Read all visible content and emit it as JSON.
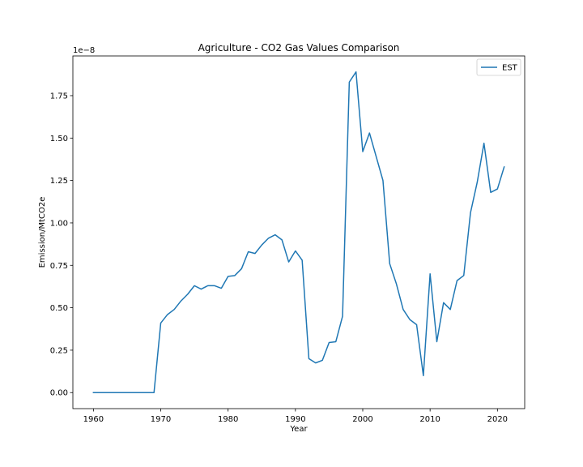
{
  "chart_data": {
    "type": "line",
    "title": "Agriculture - CO2 Gas Values Comparison",
    "xlabel": "Year",
    "ylabel": "Emission/MtCO2e",
    "y_offset_label": "1e−8",
    "y_scale_factor": 1e-08,
    "xlim": [
      1956.95,
      2024.05
    ],
    "ylim": [
      -0.0944,
      1.984
    ],
    "x_ticks": [
      1960,
      1970,
      1980,
      1990,
      2000,
      2010,
      2020
    ],
    "y_ticks": [
      0.0,
      0.25,
      0.5,
      0.75,
      1.0,
      1.25,
      1.5,
      1.75
    ],
    "y_tick_labels": [
      "0.00",
      "0.25",
      "0.50",
      "0.75",
      "1.00",
      "1.25",
      "1.50",
      "1.75"
    ],
    "grid": false,
    "legend_position": "top-right",
    "series": [
      {
        "name": "EST",
        "color": "#1f77b4",
        "x": [
          1960,
          1961,
          1962,
          1963,
          1964,
          1965,
          1966,
          1967,
          1968,
          1969,
          1970,
          1971,
          1972,
          1973,
          1974,
          1975,
          1976,
          1977,
          1978,
          1979,
          1980,
          1981,
          1982,
          1983,
          1984,
          1985,
          1986,
          1987,
          1988,
          1989,
          1990,
          1991,
          1992,
          1993,
          1994,
          1995,
          1996,
          1997,
          1998,
          1999,
          2000,
          2001,
          2002,
          2003,
          2004,
          2005,
          2006,
          2007,
          2008,
          2009,
          2010,
          2011,
          2012,
          2013,
          2014,
          2015,
          2016,
          2017,
          2018,
          2019,
          2020,
          2021
        ],
        "values": [
          0,
          0,
          0,
          0,
          0,
          0,
          0,
          0,
          0,
          0,
          0.41,
          0.46,
          0.49,
          0.54,
          0.58,
          0.63,
          0.61,
          0.63,
          0.63,
          0.615,
          0.685,
          0.69,
          0.73,
          0.83,
          0.82,
          0.87,
          0.91,
          0.93,
          0.9,
          0.77,
          0.835,
          0.78,
          0.2,
          0.175,
          0.19,
          0.295,
          0.3,
          0.45,
          1.83,
          1.89,
          1.42,
          1.53,
          1.39,
          1.25,
          0.76,
          0.64,
          0.49,
          0.43,
          0.4,
          0.1,
          0.7,
          0.3,
          0.53,
          0.49,
          0.66,
          0.69,
          1.06,
          1.24,
          1.47,
          1.18,
          1.2,
          1.33
        ]
      }
    ]
  }
}
